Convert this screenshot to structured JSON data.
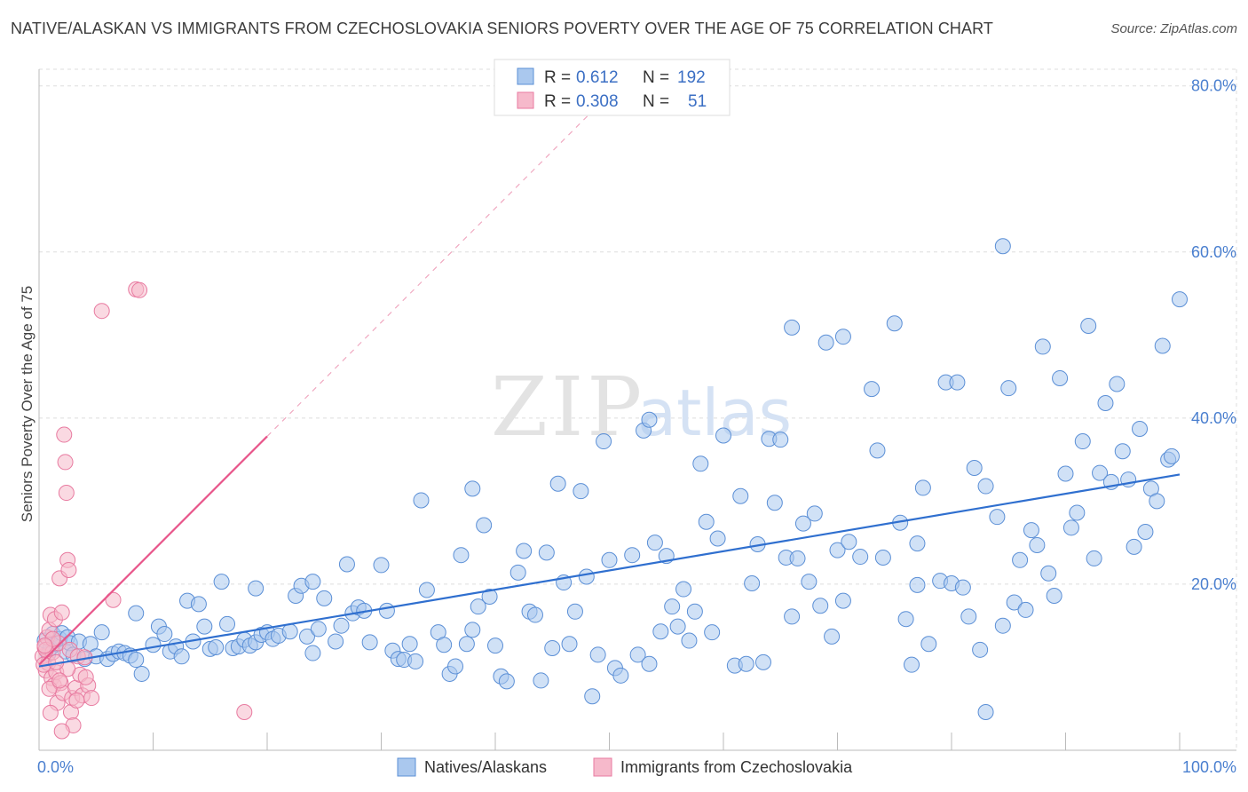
{
  "title": "NATIVE/ALASKAN VS IMMIGRANTS FROM CZECHOSLOVAKIA SENIORS POVERTY OVER THE AGE OF 75 CORRELATION CHART",
  "source": "Source: ZipAtlas.com",
  "watermark": {
    "zip": "ZIP",
    "atlas": "atlas"
  },
  "colors": {
    "blue_fill": "#aac8ee",
    "blue_stroke": "#5b8fd6",
    "blue_line": "#2f6fcf",
    "pink_fill": "#f6b9cb",
    "pink_stroke": "#e87aa0",
    "pink_line": "#e8558a",
    "grid": "#dddddd",
    "tick_label": "#4a7fcf"
  },
  "legend": {
    "rows": [
      {
        "r_label": "R =",
        "r_value": "0.612",
        "n_label": "N =",
        "n_value": "192",
        "series": "blue"
      },
      {
        "r_label": "R =",
        "r_value": "0.308",
        "n_label": "N =",
        "n_value": "51",
        "series": "pink"
      }
    ]
  },
  "chart_data": {
    "type": "scatter",
    "title": "NATIVE/ALASKAN VS IMMIGRANTS FROM CZECHOSLOVAKIA SENIORS POVERTY OVER THE AGE OF 75 CORRELATION CHART",
    "xlabel": "",
    "ylabel": "Seniors Poverty Over the Age of 75",
    "xlim": [
      0,
      100
    ],
    "ylim": [
      0,
      82
    ],
    "x_tick_labels": [
      {
        "value": 0,
        "label": "0.0%"
      },
      {
        "value": 100,
        "label": "100.0%"
      }
    ],
    "y_tick_labels": [
      {
        "value": 20,
        "label": "20.0%"
      },
      {
        "value": 40,
        "label": "40.0%"
      },
      {
        "value": 60,
        "label": "60.0%"
      },
      {
        "value": 80,
        "label": "80.0%"
      }
    ],
    "grid": true,
    "series": [
      {
        "name": "Natives/Alaskans",
        "color": "#aac8ee",
        "trend": {
          "x0": 0,
          "y0": 10.1,
          "x1": 100,
          "y1": 33.2
        },
        "points": [
          [
            0.5,
            13.2
          ],
          [
            0.8,
            11.6
          ],
          [
            1.0,
            12.3
          ],
          [
            1.2,
            14.0
          ],
          [
            1.5,
            12.8
          ],
          [
            1.8,
            13.4
          ],
          [
            2.0,
            14.1
          ],
          [
            2.3,
            11.9
          ],
          [
            2.5,
            13.6
          ],
          [
            2.7,
            12.9
          ],
          [
            3.0,
            11.5
          ],
          [
            3.5,
            13.1
          ],
          [
            4.0,
            11.0
          ],
          [
            4.5,
            12.8
          ],
          [
            5.0,
            11.3
          ],
          [
            5.5,
            14.2
          ],
          [
            6.0,
            11.0
          ],
          [
            6.5,
            11.6
          ],
          [
            7.0,
            11.9
          ],
          [
            7.5,
            11.7
          ],
          [
            8.0,
            11.4
          ],
          [
            8.5,
            10.9
          ],
          [
            9.0,
            9.2
          ],
          [
            10.0,
            12.7
          ],
          [
            10.5,
            14.9
          ],
          [
            11.0,
            14.0
          ],
          [
            11.5,
            11.9
          ],
          [
            12.0,
            12.5
          ],
          [
            12.5,
            11.3
          ],
          [
            13.0,
            18.0
          ],
          [
            13.5,
            13.1
          ],
          [
            14.0,
            17.6
          ],
          [
            14.5,
            14.9
          ],
          [
            15.0,
            12.2
          ],
          [
            15.5,
            12.4
          ],
          [
            16.0,
            20.3
          ],
          [
            16.5,
            15.2
          ],
          [
            17.0,
            12.3
          ],
          [
            17.5,
            12.5
          ],
          [
            18.0,
            13.3
          ],
          [
            18.5,
            12.6
          ],
          [
            19.0,
            13.0
          ],
          [
            19.5,
            13.9
          ],
          [
            20.0,
            14.2
          ],
          [
            20.5,
            13.4
          ],
          [
            21.0,
            13.8
          ],
          [
            22.0,
            14.3
          ],
          [
            22.5,
            18.6
          ],
          [
            23.0,
            19.8
          ],
          [
            23.5,
            13.7
          ],
          [
            24.0,
            11.7
          ],
          [
            24.5,
            14.6
          ],
          [
            25.0,
            18.3
          ],
          [
            26.0,
            13.1
          ],
          [
            26.5,
            15.0
          ],
          [
            27.0,
            22.4
          ],
          [
            27.5,
            16.5
          ],
          [
            28.0,
            17.2
          ],
          [
            28.5,
            16.8
          ],
          [
            29.0,
            13.0
          ],
          [
            30.0,
            22.3
          ],
          [
            30.5,
            16.8
          ],
          [
            31.0,
            12.0
          ],
          [
            31.5,
            11.0
          ],
          [
            32.0,
            10.9
          ],
          [
            32.5,
            12.8
          ],
          [
            33.0,
            10.7
          ],
          [
            33.5,
            30.1
          ],
          [
            34.0,
            19.3
          ],
          [
            35.0,
            14.2
          ],
          [
            35.5,
            12.7
          ],
          [
            36.0,
            9.2
          ],
          [
            36.5,
            10.1
          ],
          [
            37.0,
            23.5
          ],
          [
            37.5,
            12.8
          ],
          [
            38.0,
            14.5
          ],
          [
            38.5,
            17.3
          ],
          [
            39.0,
            27.1
          ],
          [
            39.5,
            18.5
          ],
          [
            40.0,
            12.6
          ],
          [
            40.5,
            8.9
          ],
          [
            41.0,
            8.3
          ],
          [
            42.0,
            21.4
          ],
          [
            42.5,
            24.0
          ],
          [
            43.0,
            16.7
          ],
          [
            43.5,
            16.3
          ],
          [
            44.0,
            8.4
          ],
          [
            44.5,
            23.8
          ],
          [
            45.0,
            12.3
          ],
          [
            45.5,
            32.1
          ],
          [
            46.0,
            20.2
          ],
          [
            46.5,
            12.8
          ],
          [
            47.0,
            16.7
          ],
          [
            47.5,
            31.2
          ],
          [
            48.0,
            20.9
          ],
          [
            48.5,
            6.5
          ],
          [
            49.0,
            11.5
          ],
          [
            49.5,
            37.2
          ],
          [
            50.0,
            22.9
          ],
          [
            50.5,
            9.9
          ],
          [
            51.0,
            9.0
          ],
          [
            52.0,
            23.5
          ],
          [
            52.5,
            11.5
          ],
          [
            53.0,
            38.5
          ],
          [
            53.5,
            39.8
          ],
          [
            54.0,
            25.0
          ],
          [
            54.5,
            14.3
          ],
          [
            55.0,
            23.4
          ],
          [
            55.5,
            17.3
          ],
          [
            56.0,
            14.9
          ],
          [
            56.5,
            19.4
          ],
          [
            57.0,
            13.2
          ],
          [
            57.5,
            16.7
          ],
          [
            58.0,
            34.5
          ],
          [
            58.5,
            27.5
          ],
          [
            59.0,
            14.2
          ],
          [
            59.5,
            25.5
          ],
          [
            60.0,
            37.9
          ],
          [
            61.0,
            10.2
          ],
          [
            61.5,
            30.6
          ],
          [
            62.0,
            10.4
          ],
          [
            62.5,
            20.1
          ],
          [
            63.0,
            24.8
          ],
          [
            63.5,
            10.6
          ],
          [
            64.0,
            37.5
          ],
          [
            64.5,
            29.8
          ],
          [
            65.0,
            37.4
          ],
          [
            65.5,
            23.2
          ],
          [
            66.0,
            16.1
          ],
          [
            66.5,
            23.1
          ],
          [
            67.0,
            27.3
          ],
          [
            67.5,
            20.3
          ],
          [
            68.0,
            28.5
          ],
          [
            68.5,
            17.4
          ],
          [
            69.0,
            49.1
          ],
          [
            69.5,
            13.7
          ],
          [
            70.0,
            24.1
          ],
          [
            70.5,
            18.0
          ],
          [
            71.0,
            25.1
          ],
          [
            72.0,
            23.3
          ],
          [
            73.0,
            43.5
          ],
          [
            73.5,
            36.1
          ],
          [
            74.0,
            23.2
          ],
          [
            75.0,
            51.4
          ],
          [
            75.5,
            27.4
          ],
          [
            76.0,
            15.8
          ],
          [
            76.5,
            10.3
          ],
          [
            77.0,
            24.9
          ],
          [
            77.5,
            31.6
          ],
          [
            78.0,
            12.8
          ],
          [
            79.0,
            20.4
          ],
          [
            79.5,
            44.3
          ],
          [
            80.0,
            20.1
          ],
          [
            80.5,
            44.3
          ],
          [
            81.0,
            19.6
          ],
          [
            81.5,
            16.1
          ],
          [
            82.0,
            34.0
          ],
          [
            82.5,
            12.1
          ],
          [
            83.0,
            31.8
          ],
          [
            84.0,
            28.1
          ],
          [
            84.5,
            60.7
          ],
          [
            85.0,
            43.6
          ],
          [
            85.5,
            17.8
          ],
          [
            86.0,
            22.9
          ],
          [
            86.5,
            16.9
          ],
          [
            87.0,
            26.5
          ],
          [
            87.5,
            24.7
          ],
          [
            88.0,
            48.6
          ],
          [
            88.5,
            21.3
          ],
          [
            89.0,
            18.6
          ],
          [
            89.5,
            44.8
          ],
          [
            90.0,
            33.3
          ],
          [
            90.5,
            26.8
          ],
          [
            91.0,
            28.6
          ],
          [
            91.5,
            37.2
          ],
          [
            92.0,
            51.1
          ],
          [
            92.5,
            23.1
          ],
          [
            93.0,
            33.4
          ],
          [
            93.5,
            41.8
          ],
          [
            94.0,
            32.3
          ],
          [
            94.5,
            44.1
          ],
          [
            95.0,
            36.0
          ],
          [
            95.5,
            32.6
          ],
          [
            96.0,
            24.5
          ],
          [
            96.5,
            38.7
          ],
          [
            97.0,
            26.3
          ],
          [
            97.5,
            31.5
          ],
          [
            98.0,
            30.0
          ],
          [
            98.5,
            48.7
          ],
          [
            99.0,
            35.0
          ],
          [
            100.0,
            54.3
          ],
          [
            99.3,
            35.4
          ],
          [
            70.5,
            49.8
          ],
          [
            77.0,
            19.9
          ],
          [
            66.0,
            50.9
          ],
          [
            84.5,
            15.0
          ],
          [
            83.0,
            4.6
          ],
          [
            53.5,
            10.4
          ],
          [
            19.0,
            19.5
          ],
          [
            8.5,
            16.5
          ],
          [
            24.0,
            20.3
          ],
          [
            38.0,
            31.5
          ]
        ]
      },
      {
        "name": "Immigrants from Czechoslovakia",
        "color": "#f6b9cb",
        "trend": {
          "x0": 0,
          "y0": 10.3,
          "x1": 20,
          "y1": 37.8
        },
        "trend_dashed": {
          "x0": 20,
          "y0": 37.8,
          "x1": 50,
          "y1": 79.0
        },
        "points": [
          [
            0.3,
            11.3
          ],
          [
            0.5,
            12.4
          ],
          [
            0.6,
            9.6
          ],
          [
            0.7,
            13.6
          ],
          [
            0.8,
            10.5
          ],
          [
            0.9,
            14.5
          ],
          [
            1.0,
            16.3
          ],
          [
            1.1,
            8.7
          ],
          [
            1.2,
            11.8
          ],
          [
            1.3,
            7.8
          ],
          [
            1.4,
            15.8
          ],
          [
            1.5,
            9.4
          ],
          [
            1.6,
            5.7
          ],
          [
            1.7,
            12.9
          ],
          [
            1.8,
            20.7
          ],
          [
            1.9,
            8.1
          ],
          [
            2.0,
            16.6
          ],
          [
            2.1,
            6.9
          ],
          [
            2.2,
            38.0
          ],
          [
            2.3,
            34.7
          ],
          [
            2.4,
            31.0
          ],
          [
            2.5,
            22.9
          ],
          [
            2.6,
            21.7
          ],
          [
            2.7,
            12.1
          ],
          [
            2.8,
            4.6
          ],
          [
            2.9,
            6.3
          ],
          [
            3.0,
            3.0
          ],
          [
            3.2,
            7.5
          ],
          [
            3.4,
            11.3
          ],
          [
            3.6,
            9.1
          ],
          [
            3.8,
            6.6
          ],
          [
            4.0,
            11.2
          ],
          [
            4.3,
            7.8
          ],
          [
            4.6,
            6.3
          ],
          [
            5.5,
            52.9
          ],
          [
            8.5,
            55.5
          ],
          [
            8.8,
            55.4
          ],
          [
            6.5,
            18.1
          ],
          [
            18.0,
            4.6
          ],
          [
            1.0,
            4.5
          ],
          [
            2.0,
            2.3
          ],
          [
            0.4,
            10.3
          ],
          [
            0.6,
            12.1
          ],
          [
            1.2,
            13.4
          ],
          [
            2.5,
            9.8
          ],
          [
            3.3,
            6.0
          ],
          [
            4.1,
            8.8
          ],
          [
            0.9,
            7.4
          ],
          [
            1.5,
            10.6
          ],
          [
            0.5,
            12.6
          ],
          [
            1.8,
            8.4
          ]
        ]
      }
    ]
  },
  "bottom_legend": [
    {
      "label": "Natives/Alaskans",
      "series": "blue"
    },
    {
      "label": "Immigrants from Czechoslovakia",
      "series": "pink"
    }
  ]
}
